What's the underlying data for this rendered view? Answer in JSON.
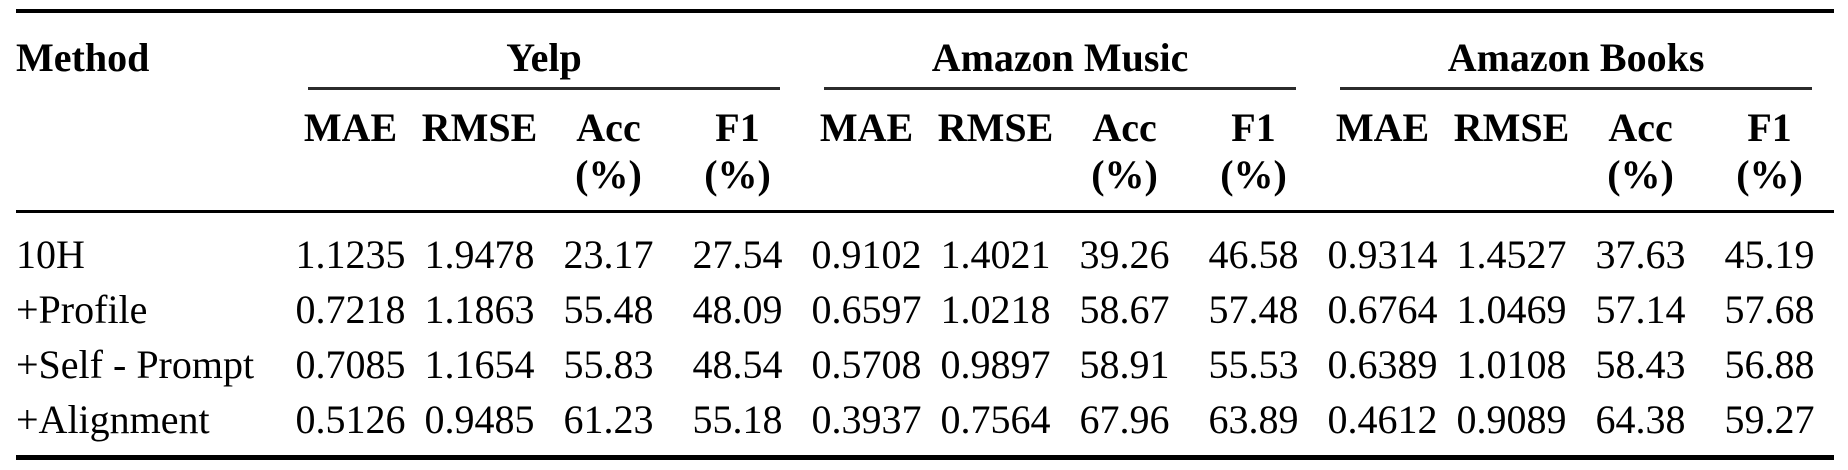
{
  "table": {
    "method_header": "Method",
    "groups": [
      {
        "label": "Yelp"
      },
      {
        "label": "Amazon Music"
      },
      {
        "label": "Amazon Books"
      }
    ],
    "metric_headers": {
      "mae": "MAE",
      "rmse": "RMSE",
      "acc": "Acc",
      "f1": "F1",
      "pct": "(%)"
    },
    "rows": [
      {
        "method": "10H",
        "values": [
          "1.1235",
          "1.9478",
          "23.17",
          "27.54",
          "0.9102",
          "1.4021",
          "39.26",
          "46.58",
          "0.9314",
          "1.4527",
          "37.63",
          "45.19"
        ]
      },
      {
        "method": "+Profile",
        "values": [
          "0.7218",
          "1.1863",
          "55.48",
          "48.09",
          "0.6597",
          "1.0218",
          "58.67",
          "57.48",
          "0.6764",
          "1.0469",
          "57.14",
          "57.68"
        ]
      },
      {
        "method": "+Self - Prompt",
        "values": [
          "0.7085",
          "1.1654",
          "55.83",
          "48.54",
          "0.5708",
          "0.9897",
          "58.91",
          "55.53",
          "0.6389",
          "1.0108",
          "58.43",
          "56.88"
        ]
      },
      {
        "method": "+Alignment",
        "values": [
          "0.5126",
          "0.9485",
          "61.23",
          "55.18",
          "0.3937",
          "0.7564",
          "67.96",
          "63.89",
          "0.4612",
          "0.9089",
          "64.38",
          "59.27"
        ]
      }
    ]
  }
}
